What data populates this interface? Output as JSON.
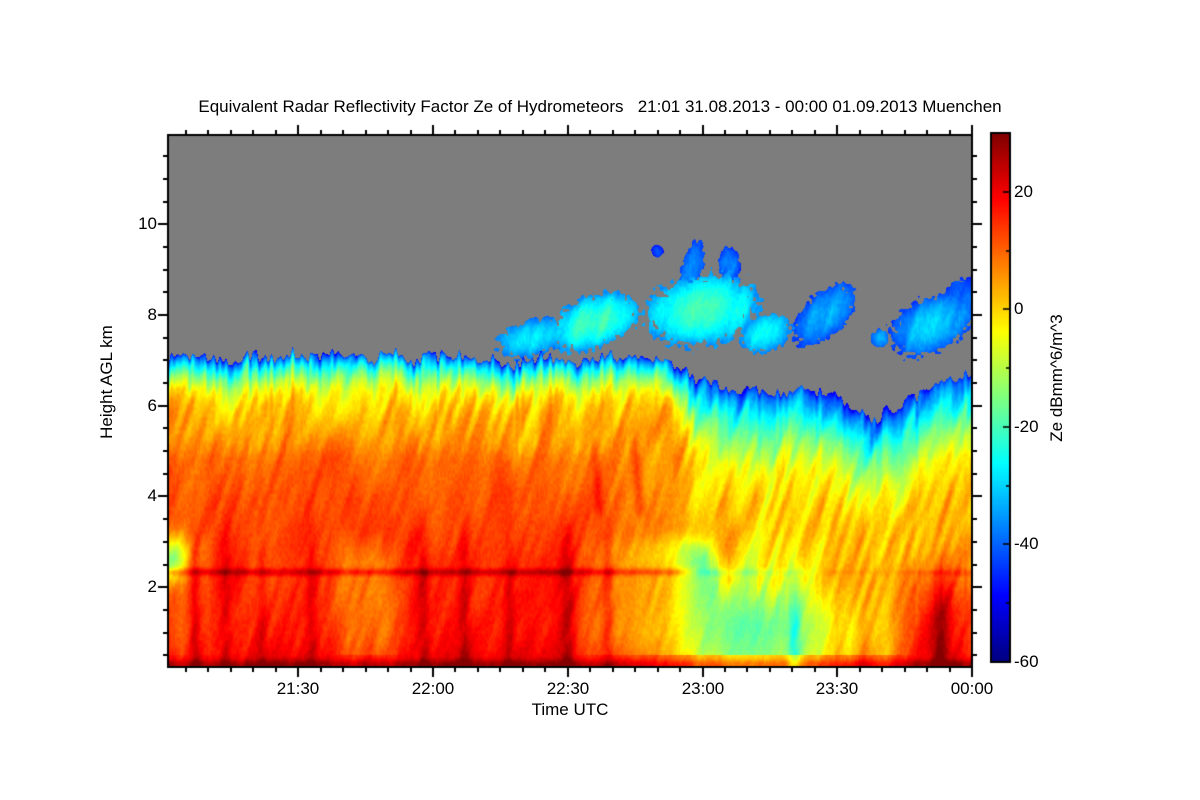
{
  "chart_data": {
    "type": "heatmap",
    "title": "Equivalent Radar Reflectivity Factor Ze of Hydrometeors   21:01 31.08.2013 - 00:00 01.09.2013 Muenchen",
    "xlabel": "Time UTC",
    "ylabel": "Height AGL km",
    "site": "Muenchen",
    "time_start": "21:01 31.08.2013",
    "time_end": "00:00 01.09.2013",
    "x_axis": {
      "duration_min": 179,
      "major_ticks": [
        {
          "label": "21:30",
          "min": 29
        },
        {
          "label": "22:00",
          "min": 59
        },
        {
          "label": "22:30",
          "min": 89
        },
        {
          "label": "23:00",
          "min": 119
        },
        {
          "label": "23:30",
          "min": 149
        },
        {
          "label": "00:00",
          "min": 179
        }
      ],
      "minor_tick_interval_min": 5
    },
    "y_axis": {
      "min_km": 0.24,
      "max_km": 11.97,
      "major_ticks": [
        2,
        4,
        6,
        8,
        10
      ],
      "minor_tick_interval_km": 0.5
    },
    "colorbar": {
      "label": "Ze dBmm^6/m^3",
      "min": -60,
      "max": 30,
      "major_ticks": [
        20,
        0,
        -20,
        -40,
        -60
      ],
      "minor_ticks": [
        10,
        -10,
        -30,
        -50
      ],
      "colormap": "jet",
      "no_data_color": "#7d7d7d"
    },
    "field": {
      "units": "dBmm^6/m^3",
      "vertical_profile_dB": [
        [
          0.24,
          20
        ],
        [
          0.6,
          18
        ],
        [
          1.0,
          16
        ],
        [
          1.6,
          15.3
        ],
        [
          2.1,
          15
        ],
        [
          2.45,
          14
        ],
        [
          3.0,
          13.2
        ],
        [
          4.0,
          11.8
        ],
        [
          4.8,
          9.5
        ],
        [
          5.5,
          5
        ],
        [
          6.0,
          0.5
        ],
        [
          6.4,
          -6
        ],
        [
          6.8,
          -18
        ],
        [
          7.0,
          -27
        ],
        [
          7.2,
          -38
        ],
        [
          12.0,
          -45
        ]
      ],
      "cloud_top_km": [
        [
          0,
          7.08
        ],
        [
          29,
          7.1
        ],
        [
          59,
          7.08
        ],
        [
          68,
          7.0
        ],
        [
          76,
          6.88
        ],
        [
          83,
          7.0
        ],
        [
          99,
          7.04
        ],
        [
          112,
          7.0
        ],
        [
          117,
          6.7
        ],
        [
          122,
          6.4
        ],
        [
          133,
          6.35
        ],
        [
          143,
          6.3
        ],
        [
          150,
          6.15
        ],
        [
          155,
          5.9
        ],
        [
          158,
          5.65
        ],
        [
          161,
          5.85
        ],
        [
          165,
          6.1
        ],
        [
          169,
          6.35
        ],
        [
          173,
          6.55
        ],
        [
          179,
          6.65
        ]
      ],
      "cloud_top_gradient_dB": [
        [
          0,
          -46
        ],
        [
          0.06,
          -38
        ],
        [
          0.22,
          -27
        ],
        [
          0.45,
          -15
        ],
        [
          0.75,
          -4
        ],
        [
          1.05,
          1
        ],
        [
          1.5,
          4
        ],
        [
          2.2,
          6
        ]
      ],
      "low_level_modulation_dB": [
        [
          0,
          -2
        ],
        [
          3,
          -5
        ],
        [
          6,
          1
        ],
        [
          9,
          -4
        ],
        [
          12,
          1
        ],
        [
          20,
          0
        ],
        [
          36,
          -1
        ],
        [
          40,
          -7
        ],
        [
          47,
          -8
        ],
        [
          51,
          -2
        ],
        [
          56,
          2
        ],
        [
          70,
          1
        ],
        [
          88,
          1
        ],
        [
          95,
          -5
        ],
        [
          104,
          -9
        ],
        [
          112,
          -15
        ],
        [
          118,
          -26
        ],
        [
          124,
          -33
        ],
        [
          130,
          -34
        ],
        [
          140,
          -30
        ],
        [
          145,
          -25
        ],
        [
          149,
          -15
        ],
        [
          152,
          -19
        ],
        [
          155,
          -11
        ],
        [
          157,
          -15
        ],
        [
          160,
          -17
        ],
        [
          162,
          -11
        ],
        [
          164,
          -6
        ],
        [
          167,
          0
        ],
        [
          170,
          3
        ],
        [
          174,
          3
        ],
        [
          179,
          -1
        ]
      ],
      "mid_level_modulation_dB": [
        [
          0,
          0
        ],
        [
          90,
          0
        ],
        [
          100,
          -3
        ],
        [
          112,
          -7
        ],
        [
          120,
          -10
        ],
        [
          136,
          -9
        ],
        [
          146,
          -5
        ],
        [
          154,
          -2
        ],
        [
          162,
          0
        ],
        [
          170,
          3
        ],
        [
          179,
          3
        ]
      ],
      "rain_shafts": [
        {
          "t_min": 6,
          "amp_dB": 5,
          "half_width_min": 1.2
        },
        {
          "t_min": 13,
          "amp_dB": 3.5,
          "half_width_min": 1.0
        },
        {
          "t_min": 21,
          "amp_dB": 4,
          "half_width_min": 1.2
        },
        {
          "t_min": 32,
          "amp_dB": 6,
          "half_width_min": 1.5
        },
        {
          "t_min": 57,
          "amp_dB": 5,
          "half_width_min": 1.2
        },
        {
          "t_min": 66,
          "amp_dB": 6,
          "half_width_min": 1.3
        },
        {
          "t_min": 76,
          "amp_dB": 5,
          "half_width_min": 1.2
        },
        {
          "t_min": 89,
          "amp_dB": 7,
          "half_width_min": 1.5
        },
        {
          "t_min": 98,
          "amp_dB": 7,
          "half_width_min": 1.3
        },
        {
          "t_min": 139.5,
          "amp_dB": -11,
          "half_width_min": 1.4
        },
        {
          "t_min": 172,
          "amp_dB": 9,
          "half_width_min": 1.8
        }
      ],
      "updraft_streaks": [
        {
          "t_min": 96,
          "h0_km": 3.8,
          "h1_km": 6.6,
          "amp_dB": 6,
          "half_width_min": 1.1
        },
        {
          "t_min": 105,
          "h0_km": 3.8,
          "h1_km": 6.9,
          "amp_dB": 8,
          "half_width_min": 1.2
        },
        {
          "t_min": 139,
          "h0_km": 2.9,
          "h1_km": 6.3,
          "amp_dB": 7,
          "half_width_min": 1.2
        }
      ],
      "bright_band": {
        "height_km": 2.33,
        "half_depth_km": 0.085,
        "amp_dB": 8.5
      },
      "surface_layer": {
        "height_km": 0.29,
        "half_depth_km": 0.12,
        "amp_dB": 8
      },
      "start_weak_zone": {
        "t_end_min": 10,
        "center_km": 2.65,
        "half_depth_km": 0.5,
        "amp_dB": -23
      },
      "upper_cloud_patches": [
        {
          "t_min": 81,
          "half_width_min": 8,
          "center_km": 7.5,
          "half_height_km": 0.42,
          "tilt_km_per_min": 0.02,
          "edge_dB": -38,
          "core_dB": -27
        },
        {
          "t_min": 95,
          "half_width_min": 10,
          "center_km": 7.85,
          "half_height_km": 0.6,
          "tilt_km_per_min": 0.025,
          "edge_dB": -36,
          "core_dB": -20
        },
        {
          "t_min": 109,
          "half_width_min": 1.3,
          "center_km": 9.4,
          "half_height_km": 0.14,
          "tilt_km_per_min": 0,
          "edge_dB": -46,
          "core_dB": -40
        },
        {
          "t_min": 116.5,
          "half_width_min": 3,
          "center_km": 9.0,
          "half_height_km": 0.55,
          "tilt_km_per_min": 0.13,
          "edge_dB": -43,
          "core_dB": -36
        },
        {
          "t_min": 119,
          "half_width_min": 13,
          "center_km": 8.1,
          "half_height_km": 0.8,
          "tilt_km_per_min": 0.01,
          "edge_dB": -36,
          "core_dB": -19
        },
        {
          "t_min": 125,
          "half_width_min": 2.6,
          "center_km": 9.1,
          "half_height_km": 0.4,
          "tilt_km_per_min": 0,
          "edge_dB": -44,
          "core_dB": -38
        },
        {
          "t_min": 133,
          "half_width_min": 6,
          "center_km": 7.6,
          "half_height_km": 0.42,
          "tilt_km_per_min": 0.02,
          "edge_dB": -36,
          "core_dB": -26
        },
        {
          "t_min": 146,
          "half_width_min": 7,
          "center_km": 8.0,
          "half_height_km": 0.58,
          "tilt_km_per_min": 0.055,
          "edge_dB": -43,
          "core_dB": -33
        },
        {
          "t_min": 158.5,
          "half_width_min": 2,
          "center_km": 7.5,
          "half_height_km": 0.2,
          "tilt_km_per_min": 0,
          "edge_dB": -40,
          "core_dB": -33
        },
        {
          "t_min": 170,
          "half_width_min": 9.5,
          "center_km": 7.8,
          "half_height_km": 0.65,
          "tilt_km_per_min": 0.03,
          "edge_dB": -43,
          "core_dB": -30
        },
        {
          "t_min": 177.5,
          "half_width_min": 4.5,
          "center_km": 8.4,
          "half_height_km": 0.45,
          "tilt_km_per_min": 0,
          "edge_dB": -45,
          "core_dB": -39
        }
      ]
    }
  }
}
